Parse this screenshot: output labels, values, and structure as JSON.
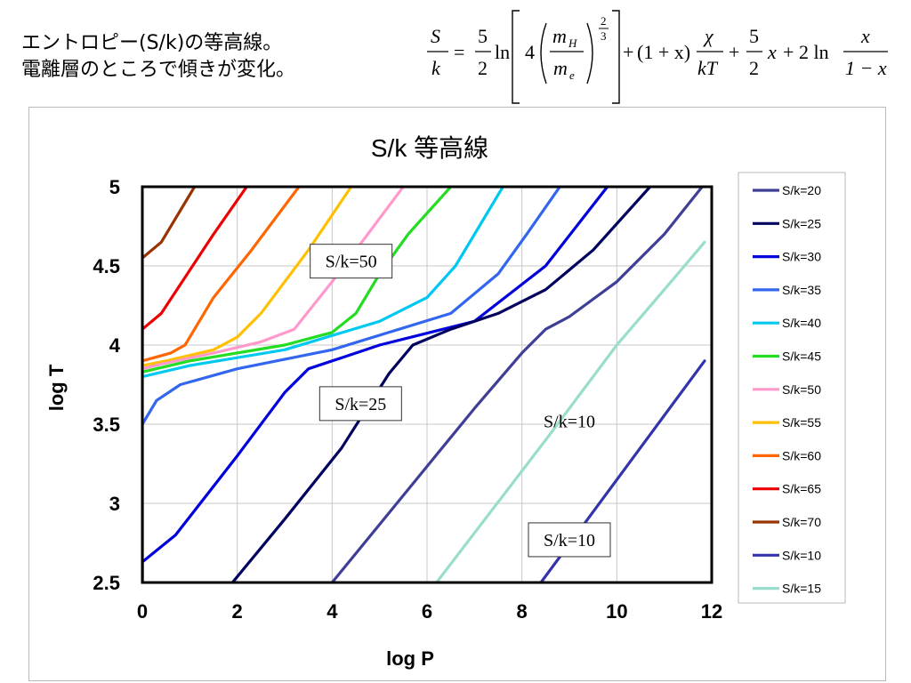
{
  "caption": {
    "line1": "エントロピー(S/k)の等高線。",
    "line2": "電離層のところで傾きが変化。"
  },
  "formula": {
    "lhs_num": "S",
    "lhs_den": "k",
    "equals": "=",
    "f1_num": "5",
    "f1_den": "2",
    "ln1": "ln",
    "four": "4",
    "mH": "m",
    "mH_sub": "H",
    "me": "m",
    "me_sub": "e",
    "exp_num": "2",
    "exp_den": "3",
    "plus1": "+",
    "one_plus_x": "(1 + x)",
    "chi": "χ",
    "kT": "kT",
    "plus2": "+",
    "f2_num": "5",
    "f2_den": "2",
    "x_term": "x",
    "plus3": "+",
    "two_ln": "2 ln",
    "frac_x_num": "x",
    "frac_x_den": "1 − x"
  },
  "chart_data": {
    "type": "line",
    "title": "S/k 等高線",
    "xlabel": "log P",
    "ylabel": "log T",
    "xlim": [
      0,
      12
    ],
    "ylim": [
      2.5,
      5
    ],
    "xticks": [
      "0",
      "2",
      "4",
      "6",
      "8",
      "10",
      "12"
    ],
    "yticks": [
      "2.5",
      "3",
      "3.5",
      "4",
      "4.5",
      "5"
    ],
    "grid": true,
    "legend_position": "right",
    "series": [
      {
        "name": "S/k=20",
        "color": "#3F3F96",
        "x": [
          4.0,
          5.5,
          7.0,
          8.0,
          8.5,
          9.0,
          10.0,
          11.0,
          11.8
        ],
        "y": [
          2.5,
          3.05,
          3.6,
          3.95,
          4.1,
          4.18,
          4.4,
          4.7,
          5.0
        ]
      },
      {
        "name": "S/k=25",
        "color": "#00005F",
        "x": [
          1.9,
          3.0,
          4.2,
          5.2,
          5.7,
          6.5,
          7.5,
          8.5,
          9.5,
          10.7
        ],
        "y": [
          2.5,
          2.9,
          3.35,
          3.82,
          4.0,
          4.1,
          4.2,
          4.35,
          4.6,
          5.0
        ]
      },
      {
        "name": "S/k=30",
        "color": "#0000DD",
        "x": [
          0.0,
          0.0,
          0.7,
          2.0,
          3.0,
          3.5,
          5.0,
          7.0,
          8.5,
          9.8
        ],
        "y": [
          2.5,
          2.63,
          2.8,
          3.3,
          3.7,
          3.85,
          4.0,
          4.15,
          4.5,
          5.0
        ]
      },
      {
        "name": "S/k=35",
        "color": "#3366EE",
        "x": [
          0.0,
          0.0,
          0.3,
          0.8,
          2.0,
          4.0,
          6.5,
          7.5,
          8.1,
          8.8
        ],
        "y": [
          2.5,
          3.5,
          3.65,
          3.75,
          3.85,
          3.97,
          4.2,
          4.45,
          4.7,
          5.0
        ]
      },
      {
        "name": "S/k=40",
        "color": "#00C8F0",
        "x": [
          0.0,
          0.0,
          1.0,
          3.0,
          5.0,
          6.0,
          6.6,
          7.1,
          7.6
        ],
        "y": [
          2.5,
          3.8,
          3.87,
          3.97,
          4.15,
          4.3,
          4.5,
          4.75,
          5.0
        ]
      },
      {
        "name": "S/k=45",
        "color": "#22DD22",
        "x": [
          0.0,
          0.0,
          1.0,
          3.0,
          4.0,
          4.5,
          5.0,
          5.6,
          6.5
        ],
        "y": [
          2.5,
          3.83,
          3.9,
          4.0,
          4.08,
          4.2,
          4.45,
          4.7,
          5.0
        ]
      },
      {
        "name": "S/k=50",
        "color": "#FF99CC",
        "x": [
          0.0,
          0.0,
          0.4,
          1.5,
          2.5,
          3.2,
          4.0,
          5.5
        ],
        "y": [
          3.4,
          3.85,
          3.88,
          3.95,
          4.02,
          4.1,
          4.4,
          5.0
        ]
      },
      {
        "name": "S/k=55",
        "color": "#FFC000",
        "x": [
          0.0,
          0.0,
          0.5,
          1.5,
          2.0,
          2.5,
          3.5,
          4.4
        ],
        "y": [
          3.8,
          3.87,
          3.9,
          3.97,
          4.05,
          4.2,
          4.6,
          5.0
        ]
      },
      {
        "name": "S/k=60",
        "color": "#FF6600",
        "x": [
          0.0,
          0.0,
          0.6,
          0.9,
          1.5,
          2.3,
          3.3
        ],
        "y": [
          3.85,
          3.9,
          3.95,
          4.0,
          4.3,
          4.6,
          5.0
        ]
      },
      {
        "name": "S/k=65",
        "color": "#EE0000",
        "x": [
          0.0,
          0.0,
          0.4,
          1.5,
          2.2
        ],
        "y": [
          3.85,
          4.1,
          4.2,
          4.7,
          5.0
        ]
      },
      {
        "name": "S/k=70",
        "color": "#993300",
        "x": [
          0.0,
          0.0,
          0.4,
          1.1
        ],
        "y": [
          3.9,
          4.55,
          4.65,
          5.0
        ]
      },
      {
        "name": "S/k=10",
        "color": "#3333AA",
        "x": [
          8.4,
          11.85
        ],
        "y": [
          2.5,
          3.9
        ]
      },
      {
        "name": "S/k=15",
        "color": "#99DDCC",
        "x": [
          6.2,
          8.5,
          10.0,
          11.0,
          11.85
        ],
        "y": [
          2.5,
          3.4,
          4.0,
          4.35,
          4.65
        ]
      }
    ],
    "annotations": [
      {
        "text": "S/k=50",
        "x": 4.4,
        "y": 4.53,
        "boxed": true
      },
      {
        "text": "S/k=25",
        "x": 4.6,
        "y": 3.63,
        "boxed": true
      },
      {
        "text": "S/k=10",
        "x": 9.0,
        "y": 3.52,
        "boxed": false
      },
      {
        "text": "S/k=10",
        "x": 9.0,
        "y": 2.77,
        "boxed": true
      }
    ]
  }
}
